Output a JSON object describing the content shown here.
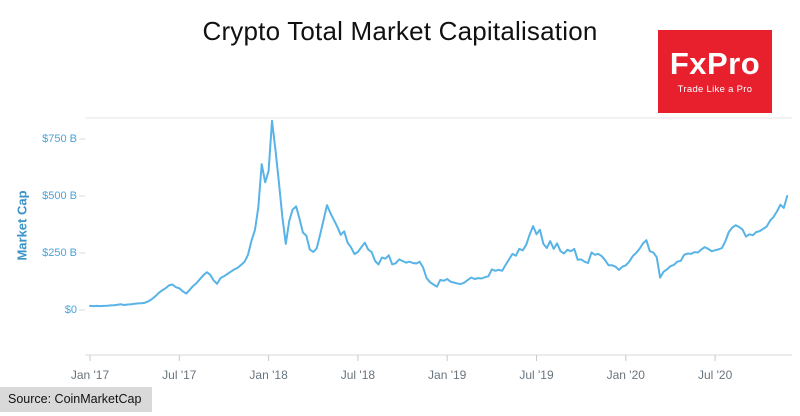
{
  "title": "Crypto Total Market Capitalisation",
  "source": "Source: CoinMarketCap",
  "logo": {
    "name": "FxPro",
    "tagline": "Trade Like a Pro",
    "bg_color": "#e8202e",
    "text_color": "#ffffff"
  },
  "chart_data": {
    "type": "line",
    "title": "Crypto Total Market Capitalisation",
    "xlabel": "",
    "ylabel": "Market Cap",
    "unit": "USD billions",
    "line_color": "#58b3e6",
    "ylim": [
      0,
      850
    ],
    "grid": false,
    "legend": "none",
    "y_ticks": [
      {
        "value": 0,
        "label": "$0"
      },
      {
        "value": 250,
        "label": "$250 B"
      },
      {
        "value": 500,
        "label": "$500 B"
      },
      {
        "value": 750,
        "label": "$750 B"
      }
    ],
    "x_ticks": [
      {
        "t": 2017.0,
        "label": "Jan '17"
      },
      {
        "t": 2017.5,
        "label": "Jul '17"
      },
      {
        "t": 2018.0,
        "label": "Jan '18"
      },
      {
        "t": 2018.5,
        "label": "Jul '18"
      },
      {
        "t": 2019.0,
        "label": "Jan '19"
      },
      {
        "t": 2019.5,
        "label": "Jul '19"
      },
      {
        "t": 2020.0,
        "label": "Jan '20"
      },
      {
        "t": 2020.5,
        "label": "Jul '20"
      }
    ],
    "start_year": 2017,
    "points_per_year": 52,
    "series_name": "Total Market Cap ($B)",
    "values": [
      18,
      17,
      18,
      17,
      18,
      19,
      20,
      21,
      23,
      25,
      22,
      24,
      25,
      27,
      29,
      30,
      32,
      38,
      48,
      60,
      75,
      86,
      95,
      108,
      112,
      100,
      95,
      82,
      72,
      88,
      105,
      118,
      135,
      152,
      166,
      155,
      130,
      115,
      140,
      148,
      158,
      168,
      178,
      185,
      198,
      212,
      242,
      302,
      350,
      450,
      640,
      560,
      610,
      830,
      700,
      560,
      410,
      290,
      390,
      440,
      455,
      400,
      340,
      325,
      265,
      255,
      270,
      330,
      395,
      460,
      425,
      395,
      365,
      330,
      345,
      295,
      275,
      245,
      255,
      275,
      295,
      265,
      255,
      215,
      200,
      230,
      225,
      240,
      200,
      205,
      222,
      215,
      208,
      212,
      206,
      204,
      212,
      185,
      140,
      122,
      112,
      102,
      132,
      128,
      136,
      124,
      120,
      116,
      114,
      120,
      132,
      142,
      136,
      140,
      138,
      144,
      148,
      178,
      172,
      176,
      172,
      198,
      222,
      246,
      238,
      268,
      262,
      286,
      330,
      368,
      332,
      352,
      290,
      272,
      302,
      268,
      292,
      258,
      248,
      264,
      258,
      268,
      220,
      222,
      212,
      206,
      252,
      242,
      246,
      236,
      218,
      196,
      196,
      190,
      176,
      190,
      196,
      212,
      236,
      250,
      268,
      292,
      306,
      258,
      252,
      232,
      142,
      168,
      178,
      192,
      198,
      212,
      216,
      242,
      248,
      246,
      254,
      252,
      266,
      276,
      268,
      258,
      262,
      266,
      272,
      302,
      342,
      362,
      372,
      364,
      352,
      322,
      332,
      328,
      342,
      346,
      356,
      366,
      392,
      408,
      432,
      462,
      448,
      500
    ]
  }
}
